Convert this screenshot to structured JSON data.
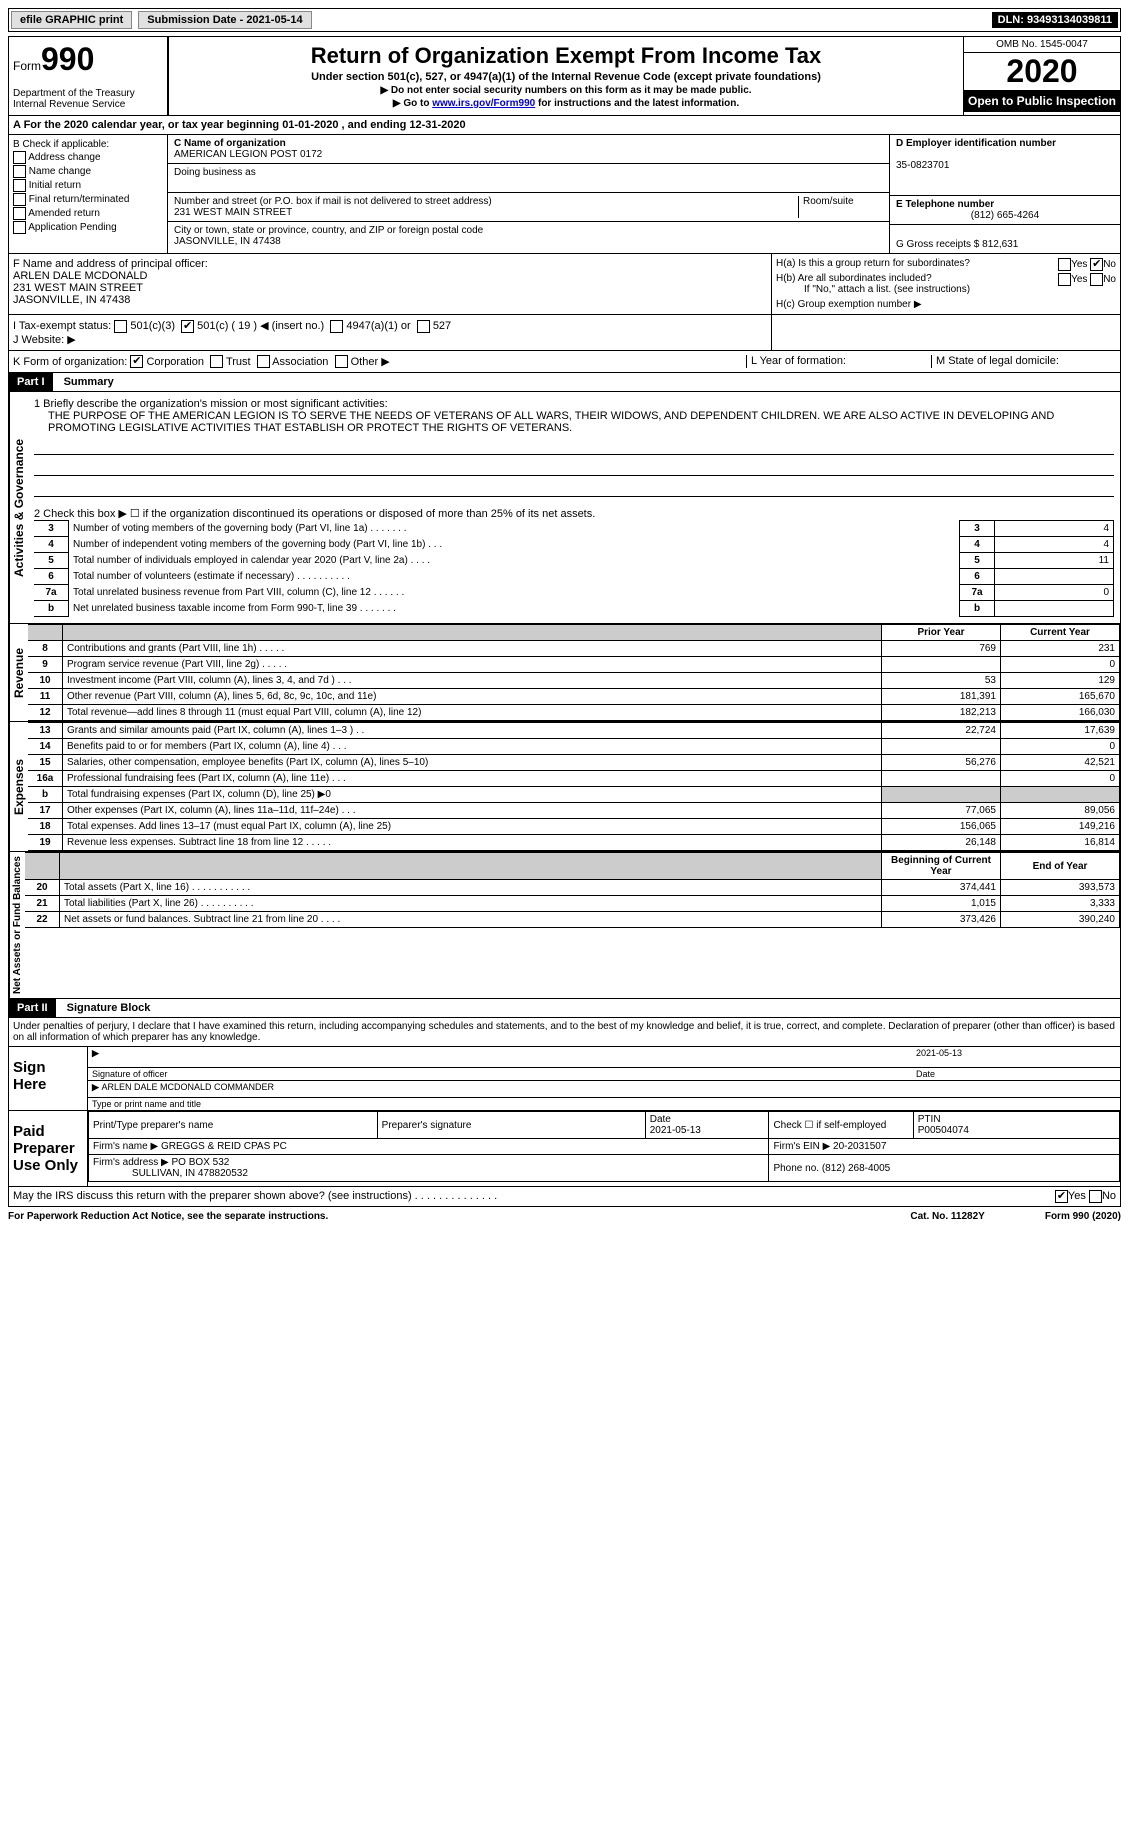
{
  "topbar": {
    "efile_label": "efile GRAPHIC print",
    "sub_date_label": "Submission Date - 2021-05-14",
    "dln_label": "DLN: 93493134039811"
  },
  "header": {
    "form_small": "Form",
    "form_no": "990",
    "dept": "Department of the Treasury\nInternal Revenue Service",
    "title": "Return of Organization Exempt From Income Tax",
    "subtitle": "Under section 501(c), 527, or 4947(a)(1) of the Internal Revenue Code (except private foundations)",
    "note1": "▶ Do not enter social security numbers on this form as it may be made public.",
    "note2_pre": "▶ Go to ",
    "note2_link": "www.irs.gov/Form990",
    "note2_post": " for instructions and the latest information.",
    "omb": "OMB No. 1545-0047",
    "year": "2020",
    "inspect": "Open to Public Inspection"
  },
  "rowA": "A  For the 2020 calendar year, or tax year beginning 01-01-2020    , and ending 12-31-2020",
  "colB": {
    "header": "B Check if applicable:",
    "items": [
      "Address change",
      "Name change",
      "Initial return",
      "Final return/terminated",
      "Amended return",
      "Application Pending"
    ]
  },
  "colC": {
    "name_label": "C Name of organization",
    "name": "AMERICAN LEGION POST 0172",
    "dba_label": "Doing business as",
    "addr_label": "Number and street (or P.O. box if mail is not delivered to street address)",
    "room_label": "Room/suite",
    "addr": "231 WEST MAIN STREET",
    "city_label": "City or town, state or province, country, and ZIP or foreign postal code",
    "city": "JASONVILLE, IN  47438"
  },
  "colD": {
    "ein_label": "D Employer identification number",
    "ein": "35-0823701",
    "tel_label": "E Telephone number",
    "tel": "(812) 665-4264",
    "gross_label": "G Gross receipts $ 812,631"
  },
  "F": {
    "label": "F Name and address of principal officer:",
    "name": "ARLEN DALE MCDONALD",
    "addr1": "231 WEST MAIN STREET",
    "addr2": "JASONVILLE, IN  47438"
  },
  "H": {
    "a_label": "H(a)  Is this a group return for subordinates?",
    "b_label": "Are all subordinates included?",
    "b_pre": "H(b)",
    "note": "If \"No,\" attach a list. (see instructions)",
    "c_label": "H(c)  Group exemption number ▶",
    "yes": "Yes",
    "no": "No"
  },
  "I": {
    "label": "I   Tax-exempt status:",
    "opts": [
      "501(c)(3)",
      "501(c) ( 19 ) ◀ (insert no.)",
      "4947(a)(1) or",
      "527"
    ]
  },
  "J": {
    "label": "J   Website: ▶"
  },
  "K": {
    "label": "K Form of organization:",
    "opts": [
      "Corporation",
      "Trust",
      "Association",
      "Other ▶"
    ]
  },
  "L": {
    "label": "L Year of formation:"
  },
  "M": {
    "label": "M State of legal domicile:"
  },
  "partI": {
    "header": "Part I",
    "title": "Summary",
    "q1_label": "1  Briefly describe the organization's mission or most significant activities:",
    "mission": "THE PURPOSE OF THE AMERICAN LEGION IS TO SERVE THE NEEDS OF VETERANS OF ALL WARS, THEIR WIDOWS, AND DEPENDENT CHILDREN. WE ARE ALSO ACTIVE IN DEVELOPING AND PROMOTING LEGISLATIVE ACTIVITIES THAT ESTABLISH OR PROTECT THE RIGHTS OF VETERANS.",
    "q2": "2   Check this box ▶ ☐  if the organization discontinued its operations or disposed of more than 25% of its net assets.",
    "gov_label": "Activities & Governance",
    "rev_label": "Revenue",
    "exp_label": "Expenses",
    "net_label": "Net Assets or Fund Balances",
    "prior_year": "Prior Year",
    "current_year": "Current Year",
    "boy": "Beginning of Current Year",
    "eoy": "End of Year",
    "lines_simple": [
      {
        "n": "3",
        "t": "Number of voting members of the governing body (Part VI, line 1a)   .   .   .   .   .   .   .",
        "v": "4"
      },
      {
        "n": "4",
        "t": "Number of independent voting members of the governing body (Part VI, line 1b)   .   .   .",
        "v": "4"
      },
      {
        "n": "5",
        "t": "Total number of individuals employed in calendar year 2020 (Part V, line 2a)   .   .   .   .",
        "v": "11"
      },
      {
        "n": "6",
        "t": "Total number of volunteers (estimate if necessary)   .   .   .   .   .   .   .   .   .   .",
        "v": ""
      },
      {
        "n": "7a",
        "t": "Total unrelated business revenue from Part VIII, column (C), line 12   .   .   .   .   .   .",
        "v": "0"
      },
      {
        "n": "b",
        "t": "Net unrelated business taxable income from Form 990-T, line 39   .   .   .   .   .   .   .",
        "v": ""
      }
    ],
    "lines_rev": [
      {
        "n": "8",
        "t": "Contributions and grants (Part VIII, line 1h)   .   .   .   .   .",
        "p": "769",
        "c": "231"
      },
      {
        "n": "9",
        "t": "Program service revenue (Part VIII, line 2g)   .   .   .   .   .",
        "p": "",
        "c": "0"
      },
      {
        "n": "10",
        "t": "Investment income (Part VIII, column (A), lines 3, 4, and 7d )   .   .   .",
        "p": "53",
        "c": "129"
      },
      {
        "n": "11",
        "t": "Other revenue (Part VIII, column (A), lines 5, 6d, 8c, 9c, 10c, and 11e)",
        "p": "181,391",
        "c": "165,670"
      },
      {
        "n": "12",
        "t": "Total revenue—add lines 8 through 11 (must equal Part VIII, column (A), line 12)",
        "p": "182,213",
        "c": "166,030"
      }
    ],
    "lines_exp": [
      {
        "n": "13",
        "t": "Grants and similar amounts paid (Part IX, column (A), lines 1–3 )  .   .",
        "p": "22,724",
        "c": "17,639"
      },
      {
        "n": "14",
        "t": "Benefits paid to or for members (Part IX, column (A), line 4)   .   .   .",
        "p": "",
        "c": "0"
      },
      {
        "n": "15",
        "t": "Salaries, other compensation, employee benefits (Part IX, column (A), lines 5–10)",
        "p": "56,276",
        "c": "42,521"
      },
      {
        "n": "16a",
        "t": "Professional fundraising fees (Part IX, column (A), line 11e)   .   .   .",
        "p": "",
        "c": "0"
      },
      {
        "n": "b",
        "t": "Total fundraising expenses (Part IX, column (D), line 25) ▶0",
        "p": "GREY",
        "c": "GREY"
      },
      {
        "n": "17",
        "t": "Other expenses (Part IX, column (A), lines 11a–11d, 11f–24e)   .   .   .",
        "p": "77,065",
        "c": "89,056"
      },
      {
        "n": "18",
        "t": "Total expenses. Add lines 13–17 (must equal Part IX, column (A), line 25)",
        "p": "156,065",
        "c": "149,216"
      },
      {
        "n": "19",
        "t": "Revenue less expenses. Subtract line 18 from line 12   .   .   .   .   .",
        "p": "26,148",
        "c": "16,814"
      }
    ],
    "lines_net": [
      {
        "n": "20",
        "t": "Total assets (Part X, line 16)   .   .   .   .   .   .   .   .   .   .   .",
        "p": "374,441",
        "c": "393,573"
      },
      {
        "n": "21",
        "t": "Total liabilities (Part X, line 26)   .   .   .   .   .   .   .   .   .   .",
        "p": "1,015",
        "c": "3,333"
      },
      {
        "n": "22",
        "t": "Net assets or fund balances. Subtract line 21 from line 20   .   .   .   .",
        "p": "373,426",
        "c": "390,240"
      }
    ]
  },
  "partII": {
    "header": "Part II",
    "title": "Signature Block",
    "decl": "Under penalties of perjury, I declare that I have examined this return, including accompanying schedules and statements, and to the best of my knowledge and belief, it is true, correct, and complete. Declaration of preparer (other than officer) is based on all information of which preparer has any knowledge.",
    "sign_here": "Sign Here",
    "sig_officer": "Signature of officer",
    "date": "Date",
    "sig_date": "2021-05-13",
    "name_title": "ARLEN DALE MCDONALD COMMANDER",
    "name_title_label": "Type or print name and title",
    "paid_prep": "Paid Preparer Use Only",
    "col_print": "Print/Type preparer's name",
    "col_sig": "Preparer's signature",
    "col_date": "Date",
    "col_date_v": "2021-05-13",
    "col_check": "Check ☐ if self-employed",
    "col_ptin_l": "PTIN",
    "col_ptin": "P00504074",
    "firm_name_l": "Firm's name     ▶",
    "firm_name": "GREGGS & REID CPAS PC",
    "firm_ein_l": "Firm's EIN ▶",
    "firm_ein": "20-2031507",
    "firm_addr_l": "Firm's address ▶",
    "firm_addr1": "PO BOX 532",
    "firm_addr2": "SULLIVAN, IN  478820532",
    "firm_phone_l": "Phone no.",
    "firm_phone": "(812) 268-4005",
    "discuss": "May the IRS discuss this return with the preparer shown above? (see instructions)   .   .   .   .   .   .   .   .   .   .   .   .   .   ."
  },
  "footer": {
    "left": "For Paperwork Reduction Act Notice, see the separate instructions.",
    "mid": "Cat. No. 11282Y",
    "right": "Form 990 (2020)"
  }
}
